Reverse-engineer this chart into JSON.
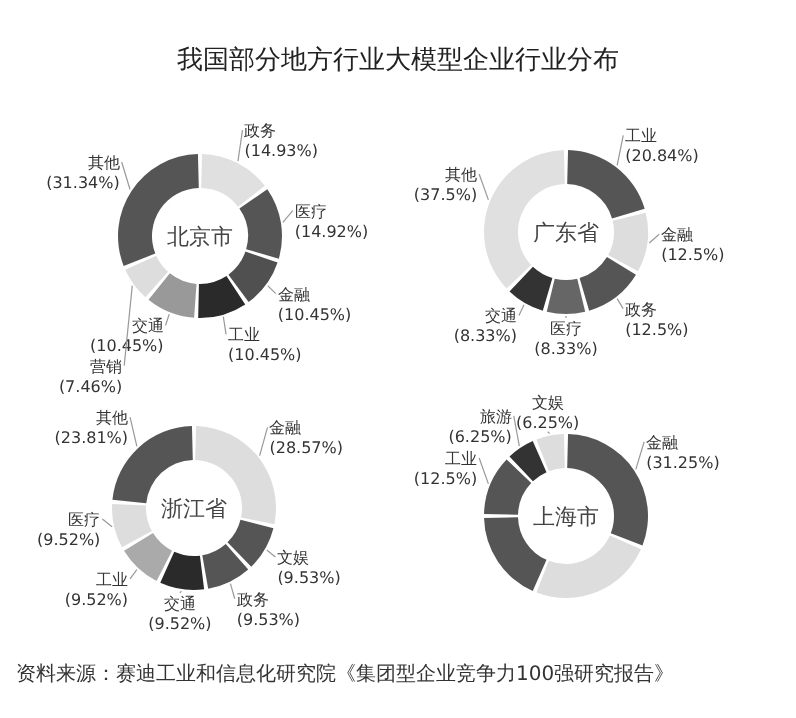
{
  "chart_data": [
    {
      "type": "other",
      "title": "我国部分地方行业大模型企业行业分布"
    },
    {
      "type": "donut",
      "title": "北京市",
      "categories": [
        "政务",
        "医疗",
        "金融",
        "工业",
        "交通",
        "营销",
        "其他"
      ],
      "values": [
        14.93,
        14.92,
        10.45,
        10.45,
        10.45,
        7.46,
        31.34
      ],
      "value_labels": [
        "(14.93%)",
        "(14.92%)",
        "(10.45%)",
        "(10.45%)",
        "(10.45%)",
        "(7.46%)",
        "(31.34%)"
      ],
      "colors": [
        "#e0e0e0",
        "#555555",
        "#505050",
        "#2a2a2a",
        "#999999",
        "#dddddd",
        "#555555"
      ]
    },
    {
      "type": "donut",
      "title": "广东省",
      "categories": [
        "工业",
        "金融",
        "政务",
        "医疗",
        "交通",
        "其他"
      ],
      "values": [
        20.84,
        12.5,
        12.5,
        8.33,
        8.33,
        37.5
      ],
      "value_labels": [
        "(20.84%)",
        "(12.5%)",
        "(12.5%)",
        "(8.33%)",
        "(8.33%)",
        "(37.5%)"
      ],
      "colors": [
        "#555555",
        "#dddddd",
        "#555555",
        "#666666",
        "#333333",
        "#e0e0e0"
      ]
    },
    {
      "type": "donut",
      "title": "浙江省",
      "categories": [
        "金融",
        "文娱",
        "政务",
        "交通",
        "工业",
        "医疗",
        "其他"
      ],
      "values": [
        28.57,
        9.53,
        9.53,
        9.52,
        9.52,
        9.52,
        23.81
      ],
      "value_labels": [
        "(28.57%)",
        "(9.53%)",
        "(9.53%)",
        "(9.52%)",
        "(9.52%)",
        "(9.52%)",
        "(23.81%)"
      ],
      "colors": [
        "#dddddd",
        "#555555",
        "#555555",
        "#2a2a2a",
        "#aaaaaa",
        "#dddddd",
        "#555555"
      ]
    },
    {
      "type": "donut",
      "title": "上海市",
      "categories": [
        "金融",
        null,
        null,
        "工业",
        "旅游",
        "文娱"
      ],
      "values": [
        31.25,
        25,
        18.75,
        12.5,
        6.25,
        6.25
      ],
      "value_labels": [
        "(31.25%)",
        null,
        null,
        "(12.5%)",
        "(6.25%)",
        "(6.25%)"
      ],
      "colors": [
        "#555555",
        "#dddddd",
        "#555555",
        "#555555",
        "#333333",
        "#dddddd"
      ]
    },
    {
      "type": "other",
      "annotations": [
        "资料来源：赛迪工业和信息化研究院《集团型企业竞争力100强研究报告》"
      ]
    }
  ]
}
